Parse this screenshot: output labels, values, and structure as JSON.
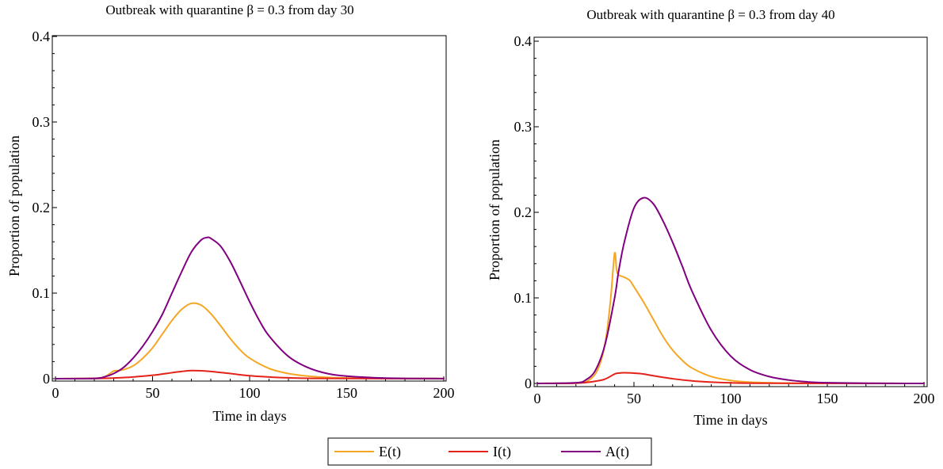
{
  "chart_data": [
    {
      "type": "line",
      "title": "Outbreak with quarantine β = 0.3 from day 30",
      "xlabel": "Time in days",
      "ylabel": "Proportion of population",
      "xlim": [
        0,
        200
      ],
      "ylim": [
        0,
        0.4
      ],
      "x_ticks": [
        0,
        50,
        100,
        150,
        200
      ],
      "x_tick_labels": [
        "0",
        "50",
        "100",
        "150",
        "200"
      ],
      "y_ticks": [
        0,
        0.1,
        0.2,
        0.3,
        0.4
      ],
      "y_tick_labels": [
        "0",
        "0.1",
        "0.2",
        "0.3",
        "0.4"
      ],
      "grid": false,
      "series": [
        {
          "name": "E(t)",
          "color": "#f5a623",
          "x": [
            0,
            20,
            25,
            28,
            30,
            32,
            35,
            40,
            45,
            50,
            55,
            60,
            65,
            70,
            75,
            80,
            85,
            90,
            95,
            100,
            110,
            120,
            130,
            140,
            150,
            170,
            200
          ],
          "y": [
            0,
            0.0005,
            0.002,
            0.006,
            0.009,
            0.0095,
            0.0105,
            0.015,
            0.024,
            0.036,
            0.052,
            0.068,
            0.081,
            0.088,
            0.086,
            0.076,
            0.062,
            0.047,
            0.034,
            0.024,
            0.012,
            0.006,
            0.003,
            0.0015,
            0.0008,
            0.0003,
            0.0001
          ]
        },
        {
          "name": "I(t)",
          "color": "#e32219",
          "x": [
            0,
            20,
            30,
            40,
            50,
            60,
            65,
            70,
            75,
            80,
            90,
            100,
            110,
            120,
            140,
            200
          ],
          "y": [
            0,
            0.0002,
            0.0008,
            0.002,
            0.004,
            0.007,
            0.0085,
            0.0095,
            0.0093,
            0.0085,
            0.006,
            0.0035,
            0.002,
            0.001,
            0.0003,
            0
          ],
          "peak_approx": [
            70,
            0.0095
          ]
        },
        {
          "name": "A(t)",
          "color": "#800080",
          "x": [
            0,
            20,
            25,
            30,
            35,
            40,
            45,
            50,
            55,
            60,
            65,
            70,
            75,
            78,
            80,
            85,
            90,
            95,
            100,
            105,
            110,
            120,
            130,
            140,
            150,
            170,
            200
          ],
          "y": [
            0,
            0.0003,
            0.002,
            0.006,
            0.013,
            0.024,
            0.038,
            0.055,
            0.075,
            0.1,
            0.125,
            0.148,
            0.162,
            0.165,
            0.164,
            0.155,
            0.137,
            0.114,
            0.09,
            0.068,
            0.05,
            0.026,
            0.013,
            0.006,
            0.003,
            0.0007,
            0.0001
          ]
        }
      ]
    },
    {
      "type": "line",
      "title": "Outbreak with quarantine β = 0.3 from day 40",
      "xlabel": "Time in days",
      "ylabel": "Proportion of population",
      "xlim": [
        0,
        200
      ],
      "ylim": [
        0,
        0.4
      ],
      "x_ticks": [
        0,
        50,
        100,
        150,
        200
      ],
      "x_tick_labels": [
        "0",
        "50",
        "100",
        "150",
        "200"
      ],
      "y_ticks": [
        0,
        0.1,
        0.2,
        0.3,
        0.4
      ],
      "y_tick_labels": [
        "0",
        "0.1",
        "0.2",
        "0.3",
        "0.4"
      ],
      "grid": false,
      "series": [
        {
          "name": "E(t)",
          "color": "#f5a623",
          "x": [
            0,
            20,
            25,
            28,
            30,
            32,
            34,
            36,
            38,
            40,
            41,
            42,
            44,
            46,
            48,
            50,
            55,
            60,
            65,
            70,
            75,
            80,
            90,
            100,
            110,
            120,
            130,
            150,
            200
          ],
          "y": [
            0,
            0.0005,
            0.002,
            0.006,
            0.011,
            0.02,
            0.035,
            0.06,
            0.1,
            0.152,
            0.133,
            0.127,
            0.125,
            0.123,
            0.12,
            0.113,
            0.095,
            0.075,
            0.055,
            0.039,
            0.027,
            0.018,
            0.008,
            0.0035,
            0.0015,
            0.0007,
            0.0003,
            0.0001,
            0
          ]
        },
        {
          "name": "I(t)",
          "color": "#e32219",
          "x": [
            0,
            20,
            30,
            35,
            40,
            42,
            45,
            50,
            55,
            60,
            70,
            80,
            90,
            100,
            120,
            200
          ],
          "y": [
            0,
            0.0002,
            0.0025,
            0.005,
            0.011,
            0.012,
            0.0125,
            0.012,
            0.011,
            0.009,
            0.0055,
            0.003,
            0.0015,
            0.0007,
            0.0002,
            0
          ]
        },
        {
          "name": "A(t)",
          "color": "#800080",
          "x": [
            0,
            20,
            25,
            30,
            35,
            40,
            42,
            45,
            50,
            55,
            60,
            65,
            70,
            75,
            80,
            90,
            100,
            110,
            120,
            130,
            140,
            150,
            170,
            200
          ],
          "y": [
            0,
            0.0008,
            0.004,
            0.015,
            0.045,
            0.1,
            0.13,
            0.165,
            0.205,
            0.217,
            0.21,
            0.19,
            0.165,
            0.137,
            0.108,
            0.062,
            0.032,
            0.016,
            0.008,
            0.004,
            0.0018,
            0.0008,
            0.0002,
            0
          ]
        }
      ]
    }
  ],
  "legend": {
    "position": "bottom-center",
    "entries": [
      {
        "label": "E(t)",
        "color": "#f5a623"
      },
      {
        "label": "I(t)",
        "color": "#e32219"
      },
      {
        "label": "A(t)",
        "color": "#800080"
      }
    ]
  }
}
